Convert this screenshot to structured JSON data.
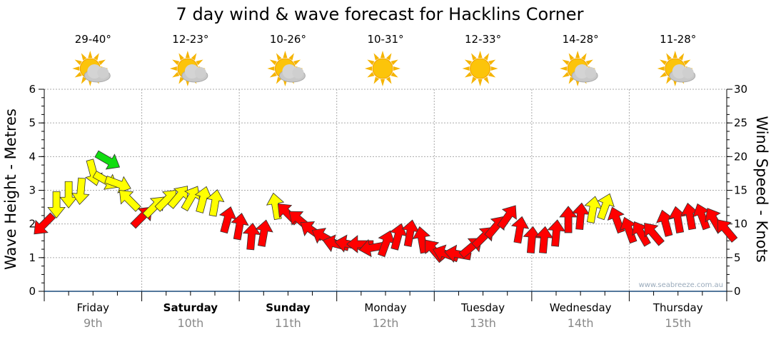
{
  "chart_data": {
    "type": "scatter",
    "title": "7 day wind & wave forecast for Hacklins Corner",
    "ylabel": "Wave Height - Metres",
    "y2label": "Wind Speed - Knots",
    "ylim": [
      0,
      6
    ],
    "y2lim": [
      0,
      30
    ],
    "yticks": [
      "0",
      "1",
      "2",
      "3",
      "4",
      "5",
      "6"
    ],
    "y2ticks": [
      "0",
      "5",
      "10",
      "15",
      "20",
      "25",
      "30"
    ],
    "grid": true,
    "watermark": "www.seabreeze.com.au",
    "days": [
      {
        "name": "Friday",
        "date": "9th",
        "temp": "29-40°",
        "icon": "partly-cloudy",
        "bold": false
      },
      {
        "name": "Saturday",
        "date": "10th",
        "temp": "12-23°",
        "icon": "partly-cloudy",
        "bold": true
      },
      {
        "name": "Sunday",
        "date": "11th",
        "temp": "10-26°",
        "icon": "partly-cloudy",
        "bold": true
      },
      {
        "name": "Monday",
        "date": "12th",
        "temp": "10-31°",
        "icon": "sunny",
        "bold": false
      },
      {
        "name": "Tuesday",
        "date": "13th",
        "temp": "12-33°",
        "icon": "sunny",
        "bold": false
      },
      {
        "name": "Wednesday",
        "date": "14th",
        "temp": "14-28°",
        "icon": "partly-cloudy",
        "bold": false
      },
      {
        "name": "Thursday",
        "date": "15th",
        "temp": "11-28°",
        "icon": "partly-cloudy",
        "bold": false
      }
    ],
    "colors": {
      "red": "#ff0000",
      "yellow": "#ffff00",
      "green": "#11dd11"
    },
    "series_note": "hours from start, wave height (m), arrow heading (deg, 0=up), wind colour class",
    "points": [
      [
        0,
        2.0,
        225,
        "red"
      ],
      [
        3,
        2.6,
        180,
        "yellow"
      ],
      [
        6,
        2.9,
        180,
        "yellow"
      ],
      [
        9,
        3.0,
        185,
        "yellow"
      ],
      [
        12,
        3.55,
        165,
        "yellow"
      ],
      [
        15,
        3.3,
        120,
        "yellow"
      ],
      [
        15.5,
        3.9,
        120,
        "green"
      ],
      [
        18,
        3.2,
        110,
        "yellow"
      ],
      [
        21,
        2.7,
        315,
        "yellow"
      ],
      [
        24,
        2.2,
        45,
        "red"
      ],
      [
        27,
        2.5,
        45,
        "yellow"
      ],
      [
        30,
        2.7,
        45,
        "yellow"
      ],
      [
        33,
        2.8,
        40,
        "yellow"
      ],
      [
        36,
        2.75,
        30,
        "yellow"
      ],
      [
        39,
        2.7,
        15,
        "yellow"
      ],
      [
        42,
        2.6,
        10,
        "yellow"
      ],
      [
        45,
        2.1,
        15,
        "red"
      ],
      [
        48,
        1.9,
        10,
        "red"
      ],
      [
        51,
        1.6,
        5,
        "red"
      ],
      [
        54,
        1.7,
        10,
        "red"
      ],
      [
        57,
        2.5,
        350,
        "yellow"
      ],
      [
        60,
        2.3,
        315,
        "red"
      ],
      [
        63,
        2.1,
        310,
        "red"
      ],
      [
        66,
        1.8,
        305,
        "red"
      ],
      [
        69,
        1.6,
        300,
        "red"
      ],
      [
        72,
        1.4,
        285,
        "red"
      ],
      [
        75,
        1.4,
        280,
        "red"
      ],
      [
        78,
        1.4,
        270,
        "red"
      ],
      [
        81,
        1.3,
        260,
        "red"
      ],
      [
        84,
        1.4,
        20,
        "red"
      ],
      [
        87,
        1.6,
        15,
        "red"
      ],
      [
        90,
        1.7,
        10,
        "red"
      ],
      [
        93,
        1.5,
        350,
        "red"
      ],
      [
        96,
        1.2,
        320,
        "red"
      ],
      [
        99,
        1.1,
        290,
        "red"
      ],
      [
        102,
        1.1,
        280,
        "red"
      ],
      [
        105,
        1.3,
        50,
        "red"
      ],
      [
        108,
        1.6,
        45,
        "red"
      ],
      [
        111,
        1.9,
        40,
        "red"
      ],
      [
        114,
        2.2,
        35,
        "red"
      ],
      [
        117,
        1.8,
        10,
        "red"
      ],
      [
        120,
        1.5,
        5,
        "red"
      ],
      [
        123,
        1.5,
        5,
        "red"
      ],
      [
        126,
        1.7,
        5,
        "red"
      ],
      [
        129,
        2.1,
        0,
        "red"
      ],
      [
        132,
        2.2,
        5,
        "red"
      ],
      [
        135,
        2.4,
        10,
        "yellow"
      ],
      [
        138,
        2.5,
        20,
        "yellow"
      ],
      [
        141,
        2.1,
        340,
        "red"
      ],
      [
        144,
        1.8,
        340,
        "red"
      ],
      [
        147,
        1.7,
        330,
        "red"
      ],
      [
        150,
        1.7,
        320,
        "red"
      ],
      [
        153,
        2.0,
        345,
        "red"
      ],
      [
        156,
        2.1,
        350,
        "red"
      ],
      [
        159,
        2.2,
        350,
        "red"
      ],
      [
        162,
        2.2,
        340,
        "red"
      ],
      [
        165,
        2.1,
        330,
        "red"
      ],
      [
        168,
        1.8,
        320,
        "red"
      ]
    ]
  }
}
